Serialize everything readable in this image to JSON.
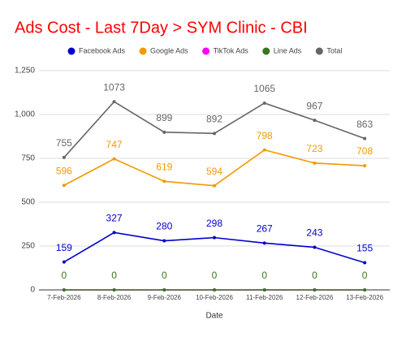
{
  "chart_data": {
    "type": "line",
    "title": "Ads Cost - Last 7Day > SYM Clinic - CBI",
    "x_label": "Date",
    "categories": [
      "7-Feb-2026",
      "8-Feb-2026",
      "9-Feb-2026",
      "10-Feb-2026",
      "11-Feb-2026",
      "12-Feb-2026",
      "13-Feb-2026"
    ],
    "series": [
      {
        "name": "Facebook Ads",
        "color": "#0000cc",
        "values": [
          159,
          327,
          280,
          298,
          267,
          243,
          155
        ],
        "show_labels": true
      },
      {
        "name": "Google Ads",
        "color": "#f29900",
        "values": [
          596,
          747,
          619,
          594,
          798,
          723,
          708
        ],
        "show_labels": true
      },
      {
        "name": "TikTok Ads",
        "color": "#ff00ff",
        "values": [
          0,
          0,
          0,
          0,
          0,
          0,
          0
        ],
        "show_labels": false
      },
      {
        "name": "Line Ads",
        "color": "#38761d",
        "values": [
          0,
          0,
          0,
          0,
          0,
          0,
          0
        ],
        "show_labels": true
      },
      {
        "name": "Total",
        "color": "#666666",
        "values": [
          755,
          1073,
          899,
          892,
          1065,
          967,
          863
        ],
        "show_labels": true
      }
    ],
    "ylim": [
      0,
      1250
    ],
    "yticks": [
      0,
      250,
      500,
      750,
      {
        "value": 1000,
        "label": "1,000"
      },
      {
        "value": 1250,
        "label": "1,250"
      }
    ],
    "grid": true
  }
}
